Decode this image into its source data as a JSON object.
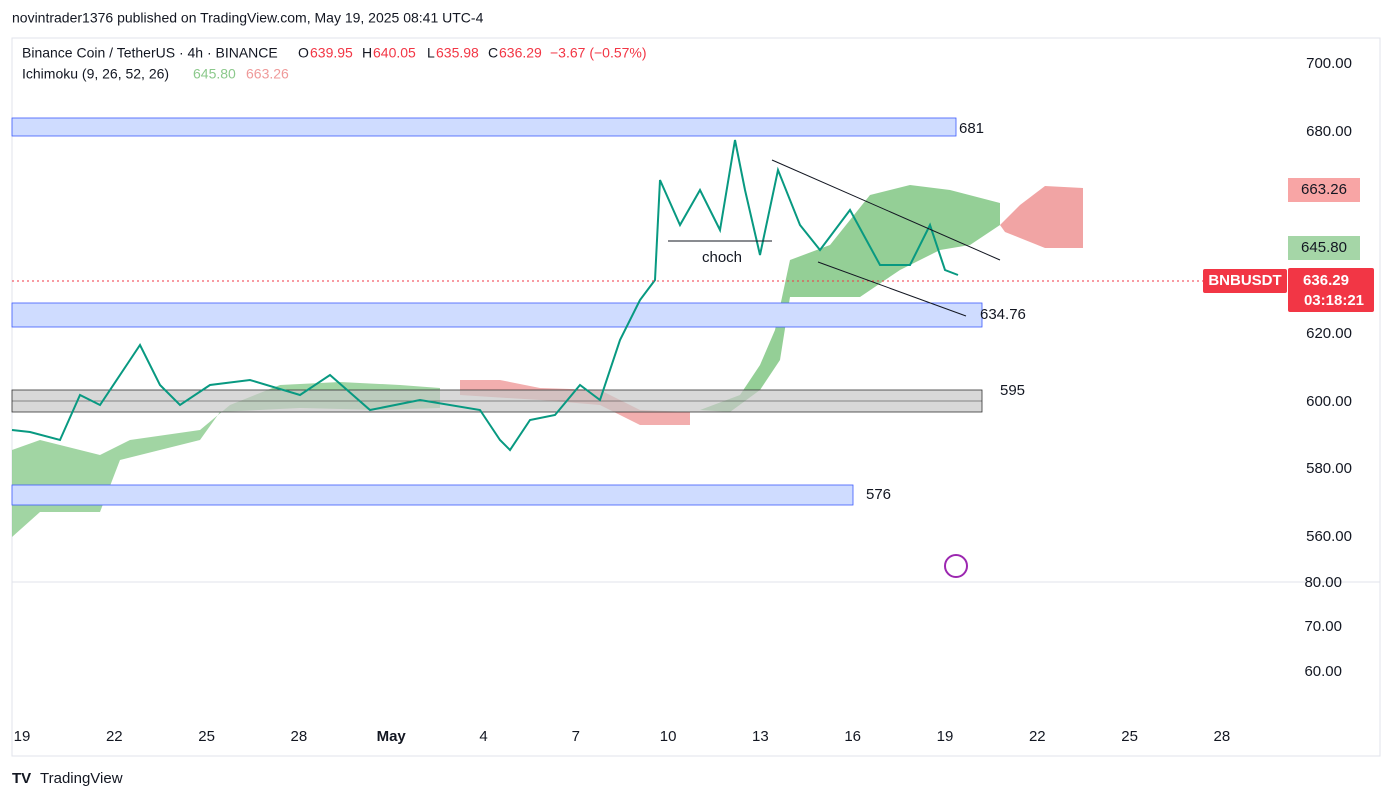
{
  "header": {
    "attribution": "novintrader1376 published on TradingView.com, May 19, 2025 08:41 UTC-4"
  },
  "legend": {
    "symbol": "Binance Coin / TetherUS · 4h · BINANCE",
    "open_label": "O",
    "open": "639.95",
    "high_label": "H",
    "high": "640.05",
    "low_label": "L",
    "low": "635.98",
    "close_label": "C",
    "close": "636.29",
    "change": "−3.67 (−0.57%)"
  },
  "indicator": {
    "name": "Ichimoku (9, 26, 52, 26)",
    "value_a": "645.80",
    "value_b": "663.26"
  },
  "price_axis": {
    "labels": [
      "700.00",
      "680.00",
      "620.00",
      "600.00",
      "580.00",
      "560.00"
    ],
    "lower_labels": [
      "80.00",
      "70.00",
      "60.00"
    ]
  },
  "badges": {
    "cloud_top": "663.26",
    "cloud_bottom": "645.80",
    "symbol": "BNBUSDT",
    "price": "636.29",
    "countdown": "03:18:21"
  },
  "zones": {
    "top": "681",
    "middle": "634.76",
    "grey": "595",
    "bottom": "576"
  },
  "annotation": "choch",
  "date_axis": [
    "19",
    "22",
    "25",
    "28",
    "May",
    "4",
    "7",
    "10",
    "13",
    "16",
    "19",
    "22",
    "25",
    "28"
  ],
  "footer": "TradingView"
}
